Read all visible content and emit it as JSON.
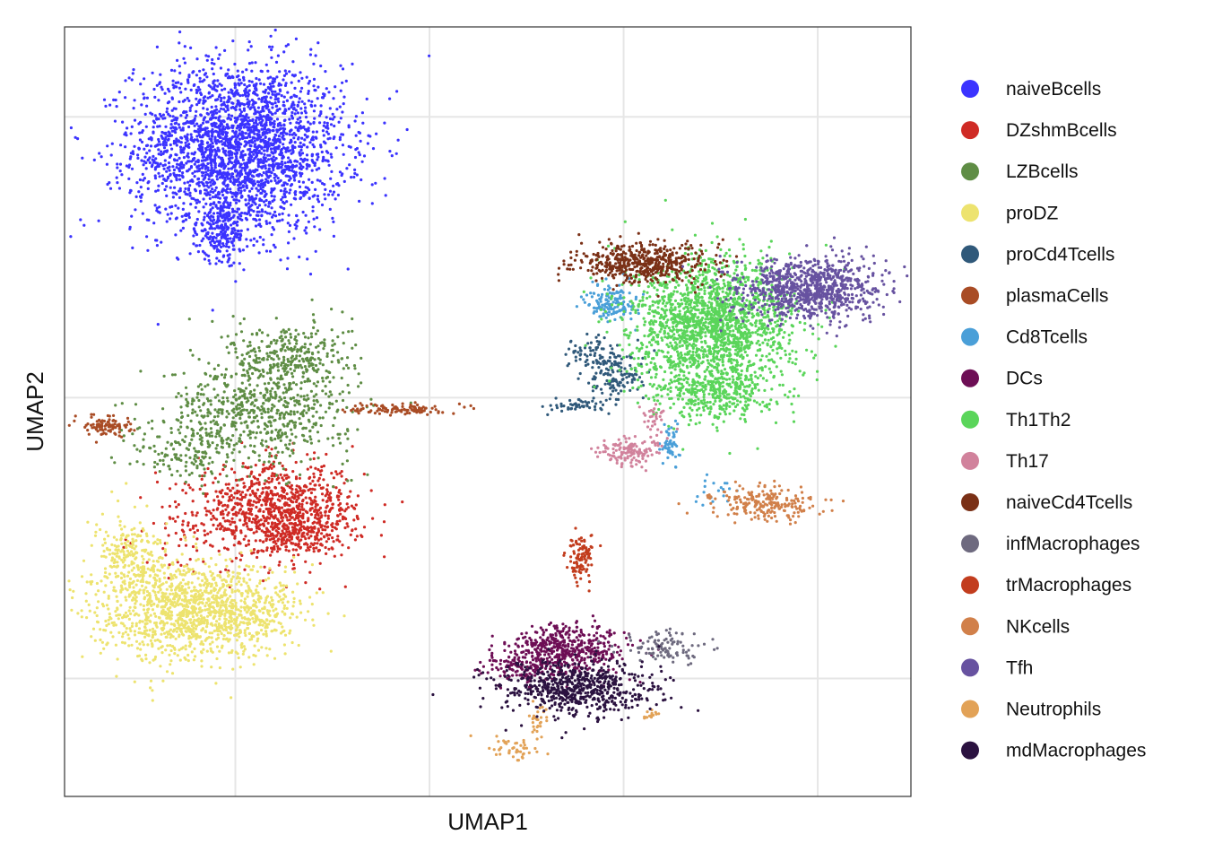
{
  "chart_data": {
    "type": "scatter",
    "title": "",
    "xlabel": "UMAP1",
    "ylabel": "UMAP2",
    "xlim": [
      -9.4,
      12.4
    ],
    "ylim": [
      -7.6,
      12.2
    ],
    "xticks": [
      -5,
      0,
      5,
      10
    ],
    "yticks": [
      -5,
      0,
      5,
      10
    ],
    "grid": true,
    "legend_position": "right",
    "point_counts": "approximate, scaled to visual density",
    "series": [
      {
        "name": "naiveBcells",
        "color": "#3B33FF",
        "clusters": [
          {
            "cx": -4.9,
            "cy": 8.9,
            "sx": 1.35,
            "sy": 1.5,
            "n": 2600
          },
          {
            "cx": -5.3,
            "cy": 6.0,
            "sx": 0.35,
            "sy": 0.6,
            "n": 220
          }
        ]
      },
      {
        "name": "DZshmBcells",
        "color": "#CF2B25",
        "clusters": [
          {
            "cx": -3.9,
            "cy": -4.0,
            "sx": 1.05,
            "sy": 0.8,
            "n": 900
          },
          {
            "cx": -3.4,
            "cy": -4.9,
            "sx": 0.5,
            "sy": 0.3,
            "n": 150
          },
          {
            "cx": -5.8,
            "cy": -5.0,
            "sx": 0.9,
            "sy": 0.7,
            "n": 70
          }
        ]
      },
      {
        "name": "LZBcells",
        "color": "#5F8D45",
        "clusters": [
          {
            "cx": -4.4,
            "cy": -0.5,
            "sx": 1.2,
            "sy": 0.9,
            "n": 650
          },
          {
            "cx": -3.6,
            "cy": 1.5,
            "sx": 0.8,
            "sy": 0.6,
            "n": 300
          },
          {
            "cx": -6.2,
            "cy": -2.0,
            "sx": 0.7,
            "sy": 0.6,
            "n": 130
          }
        ]
      },
      {
        "name": "proDZ",
        "color": "#EDE36F",
        "clusters": [
          {
            "cx": -6.3,
            "cy": -7.6,
            "sx": 1.2,
            "sy": 0.9,
            "n": 1100
          },
          {
            "cx": -7.6,
            "cy": -5.7,
            "sx": 0.5,
            "sy": 0.7,
            "n": 240
          },
          {
            "cx": -4.7,
            "cy": -7.6,
            "sx": 0.8,
            "sy": 0.5,
            "n": 240
          }
        ]
      },
      {
        "name": "proCd4Tcells",
        "color": "#30597A",
        "clusters": [
          {
            "cx": 4.8,
            "cy": 0.8,
            "sx": 0.35,
            "sy": 0.45,
            "n": 140
          },
          {
            "cx": 4.1,
            "cy": 1.6,
            "sx": 0.3,
            "sy": 0.3,
            "n": 60
          },
          {
            "cx": 3.9,
            "cy": -0.3,
            "sx": 0.45,
            "sy": 0.12,
            "n": 50
          }
        ]
      },
      {
        "name": "plasmaCells",
        "color": "#A94C25",
        "clusters": [
          {
            "cx": -0.8,
            "cy": -0.4,
            "sx": 0.6,
            "sy": 0.1,
            "n": 110
          },
          {
            "cx": -8.3,
            "cy": -1.0,
            "sx": 0.3,
            "sy": 0.18,
            "n": 95
          }
        ]
      },
      {
        "name": "Cd8Tcells",
        "color": "#4A9FD8",
        "clusters": [
          {
            "cx": 4.7,
            "cy": 3.4,
            "sx": 0.32,
            "sy": 0.32,
            "n": 150
          },
          {
            "cx": 6.2,
            "cy": -1.7,
            "sx": 0.12,
            "sy": 0.35,
            "n": 55
          },
          {
            "cx": 7.4,
            "cy": -3.2,
            "sx": 0.3,
            "sy": 0.3,
            "n": 20
          }
        ]
      },
      {
        "name": "DCs",
        "color": "#6D0E55",
        "clusters": [
          {
            "cx": 3.6,
            "cy": -9.0,
            "sx": 0.75,
            "sy": 0.45,
            "n": 480
          },
          {
            "cx": 2.3,
            "cy": -9.6,
            "sx": 0.5,
            "sy": 0.3,
            "n": 110
          }
        ]
      },
      {
        "name": "Th1Th2",
        "color": "#5AD55A",
        "clusters": [
          {
            "cx": 7.3,
            "cy": 2.6,
            "sx": 1.05,
            "sy": 1.15,
            "n": 1800
          },
          {
            "cx": 7.4,
            "cy": 0.2,
            "sx": 0.8,
            "sy": 0.55,
            "n": 350
          }
        ]
      },
      {
        "name": "Th17",
        "color": "#D1829C",
        "clusters": [
          {
            "cx": 5.1,
            "cy": -1.9,
            "sx": 0.35,
            "sy": 0.25,
            "n": 130
          },
          {
            "cx": 5.8,
            "cy": -0.9,
            "sx": 0.22,
            "sy": 0.4,
            "n": 35
          }
        ]
      },
      {
        "name": "naiveCd4Tcells",
        "color": "#7A3016",
        "clusters": [
          {
            "cx": 5.5,
            "cy": 4.8,
            "sx": 0.85,
            "sy": 0.35,
            "n": 500
          }
        ]
      },
      {
        "name": "infMacrophages",
        "color": "#6E6A7F",
        "clusters": [
          {
            "cx": 6.1,
            "cy": -8.9,
            "sx": 0.6,
            "sy": 0.3,
            "n": 100
          }
        ]
      },
      {
        "name": "trMacrophages",
        "color": "#C23D1E",
        "clusters": [
          {
            "cx": 3.9,
            "cy": -5.7,
            "sx": 0.18,
            "sy": 0.38,
            "n": 100
          }
        ]
      },
      {
        "name": "NKcells",
        "color": "#D1804A",
        "clusters": [
          {
            "cx": 8.7,
            "cy": -3.8,
            "sx": 0.65,
            "sy": 0.3,
            "n": 220
          }
        ]
      },
      {
        "name": "Tfh",
        "color": "#6752A0",
        "clusters": [
          {
            "cx": 9.8,
            "cy": 3.9,
            "sx": 0.9,
            "sy": 0.55,
            "n": 900
          }
        ]
      },
      {
        "name": "Neutrophils",
        "color": "#E2A257",
        "clusters": [
          {
            "cx": 2.1,
            "cy": -12.5,
            "sx": 0.3,
            "sy": 0.22,
            "n": 45
          },
          {
            "cx": 2.8,
            "cy": -11.5,
            "sx": 0.12,
            "sy": 0.45,
            "n": 30
          },
          {
            "cx": 5.7,
            "cy": -11.3,
            "sx": 0.12,
            "sy": 0.08,
            "n": 14
          }
        ]
      },
      {
        "name": "mdMacrophages",
        "color": "#2B1240",
        "clusters": [
          {
            "cx": 3.8,
            "cy": -10.4,
            "sx": 1.0,
            "sy": 0.5,
            "n": 650
          }
        ]
      }
    ]
  }
}
